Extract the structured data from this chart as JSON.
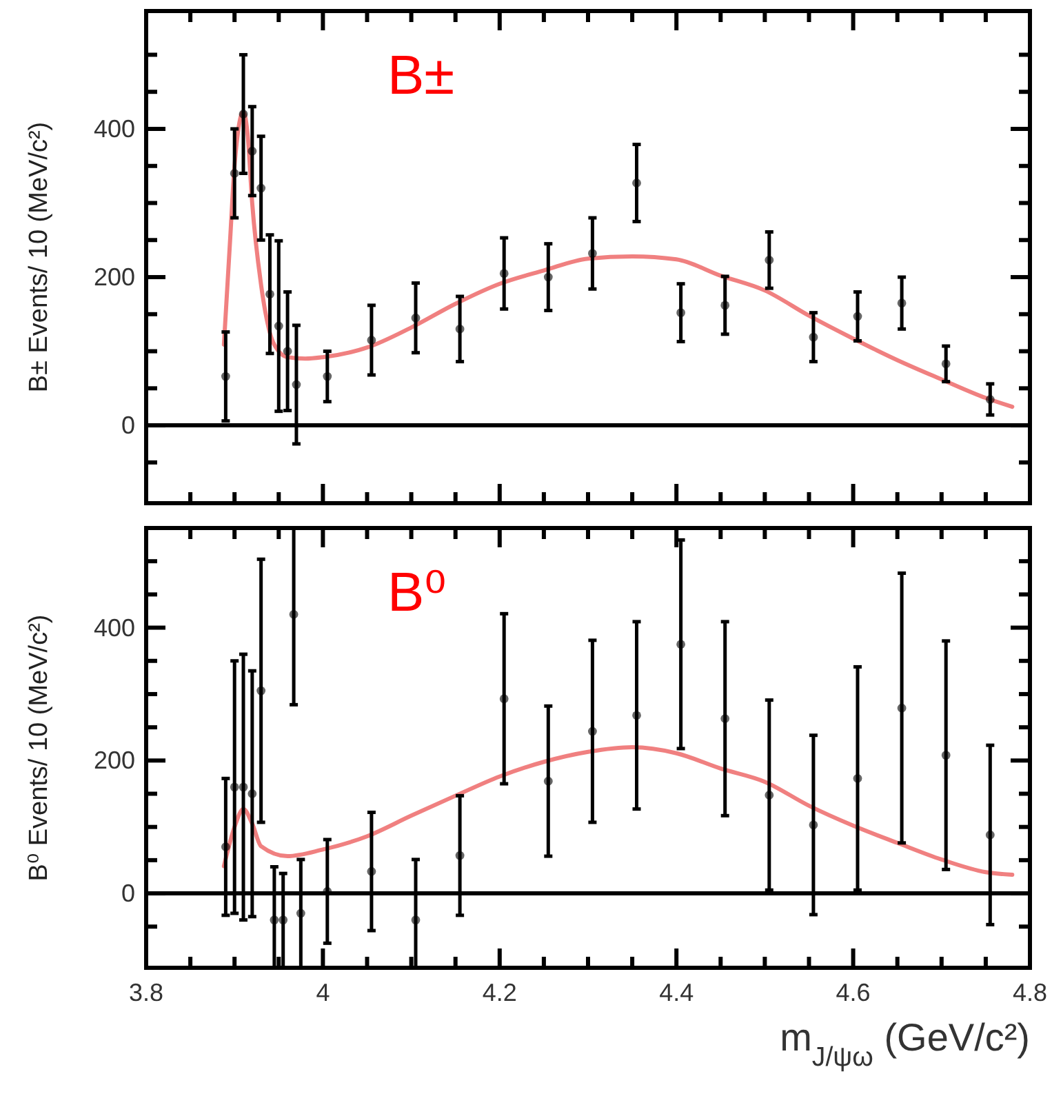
{
  "chart_data": [
    {
      "type": "scatter",
      "ylabel": "B± Events/ 10 (MeV/c²)",
      "annotations": [
        "B±"
      ],
      "tick_labels": "y",
      "xlim": [
        3.8,
        4.8
      ],
      "ylim": [
        -105,
        559
      ],
      "xticks": [
        3.8,
        {
          "value": 3.85,
          "label": null
        },
        {
          "value": 3.9,
          "label": null
        },
        {
          "value": 3.95,
          "label": null
        },
        4,
        {
          "value": 4.05,
          "label": null
        },
        {
          "value": 4.1,
          "label": null
        },
        {
          "value": 4.15,
          "label": null
        },
        4.2,
        {
          "value": 4.25,
          "label": null
        },
        {
          "value": 4.3,
          "label": null
        },
        {
          "value": 4.35,
          "label": null
        },
        4.4,
        {
          "value": 4.45,
          "label": null
        },
        {
          "value": 4.5,
          "label": null
        },
        {
          "value": 4.55,
          "label": null
        },
        4.6,
        {
          "value": 4.65,
          "label": null
        },
        {
          "value": 4.7,
          "label": null
        },
        {
          "value": 4.75,
          "label": null
        },
        4.8
      ],
      "yticks": [
        {
          "value": -50,
          "label": null
        },
        0,
        {
          "value": 50,
          "label": null
        },
        {
          "value": 100,
          "label": null
        },
        {
          "value": 150,
          "label": null
        },
        200,
        {
          "value": 250,
          "label": null
        },
        {
          "value": 300,
          "label": null
        },
        {
          "value": 350,
          "label": null
        },
        400,
        {
          "value": 450,
          "label": null
        },
        {
          "value": 500,
          "label": null
        }
      ],
      "ref_lines": [
        {
          "axis": "y",
          "value": 0,
          "color": "#000000"
        }
      ],
      "series": [
        {
          "marker": "circle",
          "color": "#000000",
          "x": [
            3.89,
            3.9,
            3.91,
            3.92,
            3.93,
            3.94,
            3.95,
            3.96,
            3.97,
            4.005,
            4.055,
            4.105,
            4.155,
            4.205,
            4.255,
            4.305,
            4.355,
            4.405,
            4.455,
            4.505,
            4.555,
            4.605,
            4.655,
            4.705,
            4.755
          ],
          "values": [
            66,
            340,
            420,
            370,
            320,
            177,
            134,
            100,
            55,
            66,
            115,
            145,
            130,
            205,
            200,
            232,
            327,
            152,
            162,
            223,
            119,
            147,
            165,
            83,
            35
          ],
          "errors": [
            60,
            60,
            80,
            60,
            70,
            80,
            115,
            80,
            80,
            34,
            47,
            47,
            44,
            48,
            45,
            48,
            52,
            39,
            39,
            38,
            33,
            33,
            35,
            24,
            21
          ]
        },
        {
          "type": "line",
          "color": "#f08080",
          "x": [
            3.888,
            3.895,
            3.9,
            3.91,
            3.915,
            3.92,
            3.93,
            3.94,
            3.95,
            3.96,
            3.98,
            4.0,
            4.05,
            4.1,
            4.15,
            4.2,
            4.25,
            4.3,
            4.35,
            4.4,
            4.45,
            4.5,
            4.55,
            4.6,
            4.65,
            4.7,
            4.75,
            4.78
          ],
          "values": [
            109,
            250,
            350,
            423,
            390,
            300,
            190,
            125,
            100,
            92,
            90,
            92,
            105,
            132,
            164,
            191,
            209,
            225,
            228,
            224,
            202,
            182,
            148,
            117,
            88,
            62,
            37,
            25
          ]
        }
      ]
    },
    {
      "type": "scatter",
      "ylabel": "B⁰ Events/ 10 (MeV/c²)",
      "xlabel": "m$_{J/ψω}$ (GeV/c²)",
      "annotations": [
        "B⁰"
      ],
      "xlim": [
        3.8,
        4.8
      ],
      "ylim": [
        -112,
        550
      ],
      "xticks": [
        3.8,
        {
          "value": 3.85,
          "label": null
        },
        {
          "value": 3.9,
          "label": null
        },
        {
          "value": 3.95,
          "label": null
        },
        4,
        {
          "value": 4.05,
          "label": null
        },
        {
          "value": 4.1,
          "label": null
        },
        {
          "value": 4.15,
          "label": null
        },
        4.2,
        {
          "value": 4.25,
          "label": null
        },
        {
          "value": 4.3,
          "label": null
        },
        {
          "value": 4.35,
          "label": null
        },
        4.4,
        {
          "value": 4.45,
          "label": null
        },
        {
          "value": 4.5,
          "label": null
        },
        {
          "value": 4.55,
          "label": null
        },
        4.6,
        {
          "value": 4.65,
          "label": null
        },
        {
          "value": 4.7,
          "label": null
        },
        {
          "value": 4.75,
          "label": null
        },
        4.8
      ],
      "yticks": [
        {
          "value": -50,
          "label": null
        },
        0,
        {
          "value": 50,
          "label": null
        },
        {
          "value": 100,
          "label": null
        },
        {
          "value": 150,
          "label": null
        },
        200,
        {
          "value": 250,
          "label": null
        },
        {
          "value": 300,
          "label": null
        },
        {
          "value": 350,
          "label": null
        },
        400,
        {
          "value": 450,
          "label": null
        },
        {
          "value": 500,
          "label": null
        }
      ],
      "ref_lines": [
        {
          "axis": "y",
          "value": 0,
          "color": "#000000"
        }
      ],
      "series": [
        {
          "marker": "circle",
          "color": "#000000",
          "x": [
            3.89,
            3.9,
            3.91,
            3.92,
            3.93,
            3.945,
            3.955,
            3.967,
            3.975,
            4.005,
            4.055,
            4.105,
            4.155,
            4.205,
            4.255,
            4.305,
            4.355,
            4.405,
            4.455,
            4.505,
            4.555,
            4.605,
            4.655,
            4.705,
            4.755
          ],
          "values": [
            70,
            160,
            160,
            150,
            305,
            -40,
            -40,
            420,
            -30,
            3,
            33,
            -40,
            57,
            293,
            169,
            244,
            268,
            375,
            263,
            148,
            103,
            173,
            279,
            208,
            88
          ],
          "errors": [
            103,
            190,
            200,
            185,
            198,
            [
              -112,
              40
            ],
            [
              -112,
              30
            ],
            [
              284,
              550
            ],
            [
              -112,
              51
            ],
            78,
            89,
            [
              -112,
              51
            ],
            90,
            128,
            113,
            137,
            141,
            157,
            146,
            143,
            135,
            168,
            203,
            172,
            135
          ]
        },
        {
          "type": "line",
          "color": "#f08080",
          "x": [
            3.888,
            3.9,
            3.91,
            3.92,
            3.93,
            3.96,
            4.0,
            4.05,
            4.1,
            4.15,
            4.2,
            4.25,
            4.3,
            4.35,
            4.4,
            4.45,
            4.5,
            4.55,
            4.6,
            4.65,
            4.7,
            4.75,
            4.78
          ],
          "values": [
            41,
            100,
            127,
            105,
            71,
            56,
            66,
            86,
            117,
            147,
            176,
            198,
            213,
            220,
            211,
            188,
            168,
            132,
            102,
            76,
            51,
            32,
            28
          ]
        }
      ]
    }
  ]
}
